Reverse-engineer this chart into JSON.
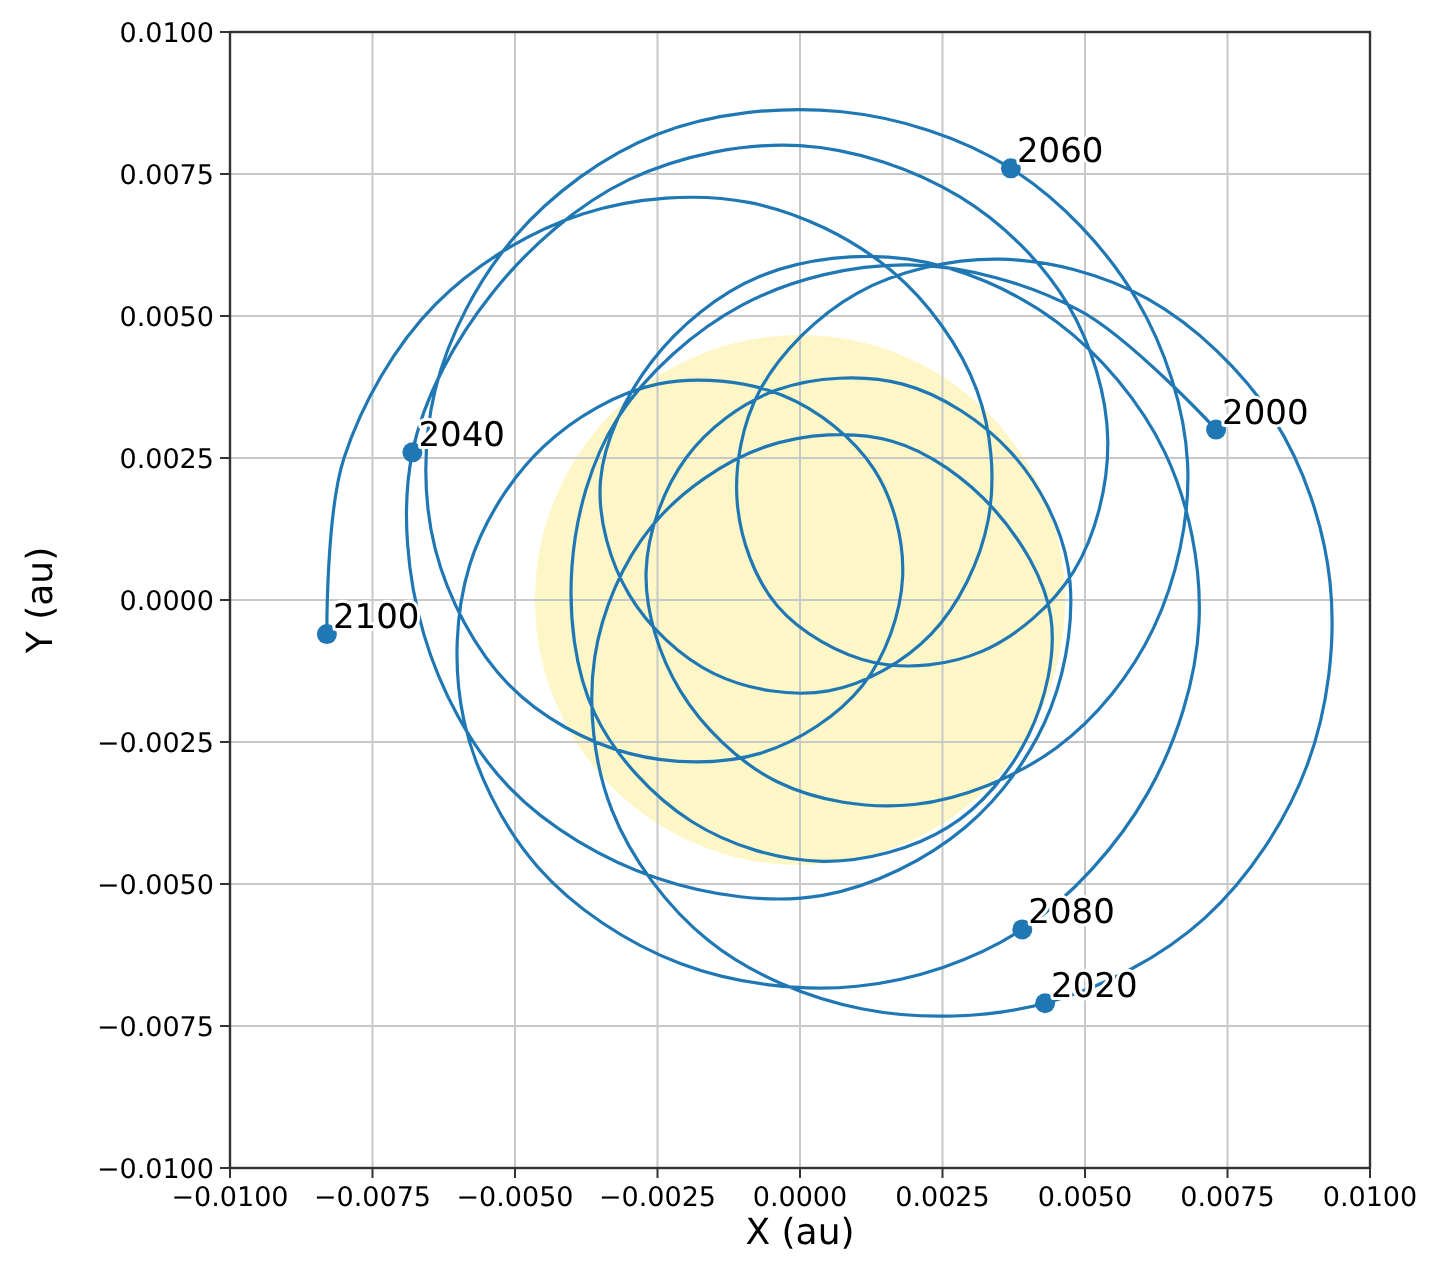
{
  "chart_data": {
    "type": "line",
    "xlabel": "X (au)",
    "ylabel": "Y (au)",
    "xlim": [
      -0.01,
      0.01
    ],
    "ylim": [
      -0.01,
      0.01
    ],
    "xticks": [
      {
        "value": -0.01,
        "label": "−0.0100"
      },
      {
        "value": -0.0075,
        "label": "−0.0075"
      },
      {
        "value": -0.005,
        "label": "−0.0050"
      },
      {
        "value": -0.0025,
        "label": "−0.0025"
      },
      {
        "value": 0,
        "label": "0.0000"
      },
      {
        "value": 0.0025,
        "label": "0.0025"
      },
      {
        "value": 0.005,
        "label": "0.0050"
      },
      {
        "value": 0.0075,
        "label": "0.0075"
      },
      {
        "value": 0.01,
        "label": "0.0100"
      }
    ],
    "yticks": [
      {
        "value": -0.01,
        "label": "−0.0100"
      },
      {
        "value": -0.0075,
        "label": "−0.0075"
      },
      {
        "value": -0.005,
        "label": "−0.0050"
      },
      {
        "value": -0.0025,
        "label": "−0.0025"
      },
      {
        "value": 0,
        "label": "0.0000"
      },
      {
        "value": 0.0025,
        "label": "0.0025"
      },
      {
        "value": 0.005,
        "label": "0.0050"
      },
      {
        "value": 0.0075,
        "label": "0.0075"
      },
      {
        "value": 0.01,
        "label": "0.0100"
      }
    ],
    "grid": true,
    "series": [
      {
        "color": "#1f77b4",
        "marker": "none",
        "line_style": "solid",
        "x": [
          0.0073,
          0.0049,
          0.0019,
          -0.001,
          -0.0032,
          -0.004,
          -0.0036,
          -0.0019,
          0.0004,
          0.0026,
          0.004,
          0.0044,
          0.0034,
          0.0016,
          -0.0006,
          -0.0026,
          -0.0036,
          -0.0033,
          -0.0016,
          0.0011,
          0.0043,
          0.0071,
          0.0089,
          0.0093,
          0.0083,
          0.0061,
          0.0035,
          0.001,
          -0.0007,
          -0.0011,
          -0.0004,
          0.0013,
          0.0032,
          0.0048,
          0.0054,
          0.0047,
          0.0028,
          0,
          -0.003,
          -0.0054,
          -0.0068,
          -0.0066,
          -0.0051,
          -0.0025,
          0.0004,
          0.0029,
          0.0044,
          0.0047,
          0.0037,
          0.0018,
          -0.0004,
          -0.002,
          -0.0027,
          -0.0021,
          -0.0004,
          0.002,
          0.0045,
          0.0062,
          0.0068,
          0.0059,
          0.0037,
          0.0007,
          -0.0025,
          -0.005,
          -0.0064,
          -0.0064,
          -0.0051,
          -0.003,
          -0.0007,
          0.0011,
          0.0018,
          0.0013,
          -0.0003,
          -0.0025,
          -0.0045,
          -0.0058,
          -0.0059,
          -0.0046,
          -0.0021,
          0.001,
          0.0039,
          0.0061,
          0.007,
          0.0064,
          0.0045,
          0.0019,
          -0.0007,
          -0.0026,
          -0.0035,
          -0.003,
          -0.0015,
          0.0005,
          0.0023,
          0.0033,
          0.0031,
          0.0016,
          -0.0009,
          -0.0038,
          -0.0064,
          -0.008,
          -0.0083
        ],
        "values": [
          0.003,
          0.0051,
          0.0059,
          0.0052,
          0.0032,
          0.0006,
          -0.002,
          -0.0039,
          -0.0046,
          -0.004,
          -0.0024,
          -0.0003,
          0.0016,
          0.0028,
          0.0027,
          0.0013,
          -0.001,
          -0.0037,
          -0.006,
          -0.0072,
          -0.0071,
          -0.0056,
          -0.0029,
          0.0003,
          0.0032,
          0.0053,
          0.006,
          0.0054,
          0.0037,
          0.0017,
          -0.0001,
          -0.0011,
          -0.0009,
          0.0005,
          0.0028,
          0.0052,
          0.0071,
          0.008,
          0.0074,
          0.0054,
          0.0026,
          -0.0006,
          -0.0033,
          -0.0049,
          -0.0052,
          -0.004,
          -0.0019,
          0.0006,
          0.0026,
          0.0038,
          0.0037,
          0.0025,
          0.0005,
          -0.0016,
          -0.0032,
          -0.0036,
          -0.0026,
          -0.0005,
          0.0024,
          0.0053,
          0.0076,
          0.0086,
          0.0082,
          0.0064,
          0.0037,
          0.0009,
          -0.0015,
          -0.0027,
          -0.0027,
          -0.0015,
          0.0004,
          0.0023,
          0.0036,
          0.0038,
          0.0027,
          0.0006,
          -0.0021,
          -0.0047,
          -0.0064,
          -0.0068,
          -0.0058,
          -0.0034,
          -0.0004,
          0.0026,
          0.0049,
          0.006,
          0.0057,
          0.0042,
          0.0021,
          0.0001,
          -0.0013,
          -0.0016,
          -0.0006,
          0.0014,
          0.0037,
          0.0058,
          0.007,
          0.0068,
          0.0052,
          0.0025,
          -0.0006
        ]
      },
      {
        "type": "scatter",
        "color": "#1f77b4",
        "marker": "circle",
        "x": [
          0.0073,
          0.0043,
          -0.0068,
          0.0037,
          0.0039,
          -0.0083
        ],
        "values": [
          0.003,
          -0.0071,
          0.0026,
          0.0076,
          -0.0058,
          -0.0006
        ]
      }
    ],
    "annotations": [
      {
        "text": "2000",
        "x": 0.0073,
        "y": 0.003
      },
      {
        "text": "2020",
        "x": 0.0043,
        "y": -0.0071
      },
      {
        "text": "2040",
        "x": -0.0068,
        "y": 0.0026
      },
      {
        "text": "2060",
        "x": 0.0037,
        "y": 0.0076
      },
      {
        "text": "2080",
        "x": 0.0039,
        "y": -0.0058
      },
      {
        "text": "2100",
        "x": -0.0083,
        "y": -0.0006
      }
    ]
  }
}
